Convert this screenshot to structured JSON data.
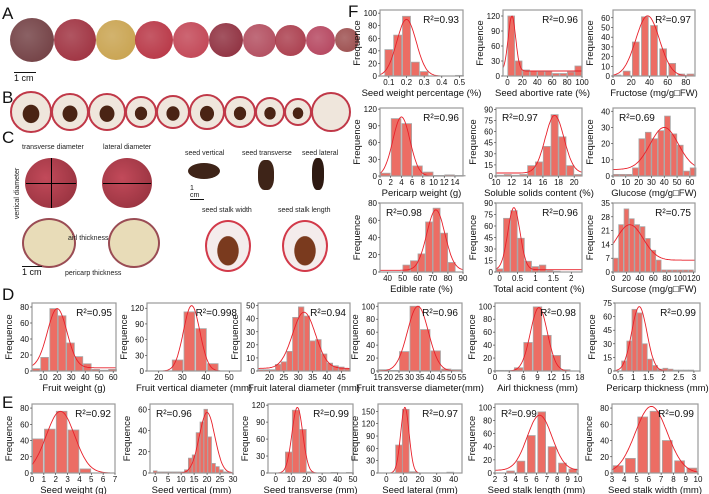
{
  "panels": {
    "A": "A",
    "B": "B",
    "C": "C",
    "D": "D",
    "E": "E",
    "F": "F"
  },
  "scale_bars": {
    "a": "1 cm",
    "c_seed": "1 cm",
    "c_fruit": "1 cm"
  },
  "panel_c_labels": {
    "transverse_diameter": "transverse diameter",
    "lateral_diameter": "lateral diameter",
    "vertical_diameter": "vertical diameter",
    "seed_vertical": "seed vertical",
    "seed_transverse": "seed transverse",
    "seed_lateral": "seed lateral",
    "seed_stalk_width": "seed stalk width",
    "seed_stalk_length": "seed stalk length",
    "airl_thickness": "airl thickness",
    "pericarp_thickness": "pericarp thickness"
  },
  "colors": {
    "bar": "#ec6d64",
    "bar_edge": "#a8a8a8",
    "curve": "#e8202a",
    "frame": "#9a9a9a"
  },
  "chart_data": [
    {
      "id": "F1",
      "type": "bar",
      "title": "",
      "xlabel": "Seed weight percentage (%)",
      "ylabel": "Frequence",
      "r2": "R²=0.93",
      "r2_pos": "top-right",
      "xlim": [
        0.05,
        0.52
      ],
      "ylim": [
        0,
        105
      ],
      "xticks": [
        0.1,
        0.2,
        0.3,
        0.4,
        0.5
      ],
      "yticks": [
        0,
        20,
        40,
        60,
        80,
        100
      ],
      "bar_width": 0.045,
      "x": [
        0.1,
        0.15,
        0.2,
        0.25,
        0.3,
        0.5
      ],
      "values": [
        42,
        65,
        95,
        22,
        7,
        1
      ],
      "fit": {
        "mean": 0.2,
        "sd": 0.055,
        "peak": 90
      }
    },
    {
      "id": "F2",
      "type": "bar",
      "xlabel": "Seed abortive rate (%)",
      "ylabel": "Frequence",
      "r2": "R²=0.96",
      "r2_pos": "top-right",
      "xlim": [
        -6,
        100
      ],
      "ylim": [
        0,
        132
      ],
      "xticks": [
        0,
        20,
        40,
        60,
        80,
        100
      ],
      "yticks": [
        0,
        30,
        60,
        90,
        120
      ],
      "bar_width": 9,
      "x": [
        5,
        15,
        25,
        35,
        45,
        55,
        65,
        75,
        85,
        95
      ],
      "values": [
        120,
        30,
        12,
        10,
        9,
        9,
        5,
        5,
        8,
        20
      ],
      "fit": {
        "mean": 6,
        "sd": 5,
        "peak": 120,
        "base": 10
      }
    },
    {
      "id": "F3",
      "type": "bar",
      "xlabel": "Fructose (mg/g□FW)",
      "ylabel": "Frequence",
      "r2": "R²=0.97",
      "r2_pos": "top-right",
      "xlim": [
        0,
        90
      ],
      "ylim": [
        0,
        68
      ],
      "xticks": [
        0,
        20,
        40,
        60,
        80
      ],
      "yticks": [
        0,
        10,
        20,
        30,
        40,
        50,
        60
      ],
      "bar_width": 7.5,
      "x": [
        5,
        15,
        25,
        35,
        45,
        55,
        65,
        75,
        85
      ],
      "values": [
        1,
        5,
        35,
        61,
        52,
        28,
        13,
        2,
        2
      ],
      "fit": {
        "mean": 38,
        "sd": 13,
        "peak": 62
      }
    },
    {
      "id": "F4",
      "type": "bar",
      "xlabel": "Pericarp weight (g)",
      "ylabel": "Frequence",
      "r2": "R²=0.96",
      "r2_pos": "top-right",
      "xlim": [
        0,
        15.5
      ],
      "ylim": [
        0,
        122
      ],
      "xticks": [
        0,
        2,
        4,
        6,
        8,
        10,
        12,
        14
      ],
      "yticks": [
        0,
        30,
        60,
        90,
        120
      ],
      "bar_width": 1.8,
      "x": [
        1,
        3,
        5,
        7,
        9,
        11,
        13,
        15
      ],
      "values": [
        5,
        103,
        94,
        18,
        7,
        1,
        2,
        1
      ],
      "fit": {
        "mean": 4,
        "sd": 1.6,
        "peak": 106
      }
    },
    {
      "id": "F5",
      "type": "bar",
      "xlabel": "Soluble solids content (%)",
      "ylabel": "Frequence",
      "r2": "R²=0.97",
      "r2_pos": "top-left",
      "xlim": [
        10,
        21
      ],
      "ylim": [
        0,
        92
      ],
      "xticks": [
        10,
        12,
        14,
        16,
        18,
        20
      ],
      "yticks": [
        0,
        15,
        30,
        45,
        60,
        75,
        90
      ],
      "bar_width": 0.9,
      "x": [
        10.5,
        11.5,
        12.5,
        13.5,
        14.5,
        15.5,
        16.5,
        17.5,
        18.5,
        19.5,
        20.5
      ],
      "values": [
        1,
        2,
        1,
        2,
        14,
        19,
        40,
        83,
        53,
        14,
        2
      ],
      "fit": {
        "mean": 17.5,
        "sd": 1.2,
        "peak": 82,
        "base": 4
      }
    },
    {
      "id": "F6",
      "type": "bar",
      "xlabel": "Glucose (mg/g□FW)",
      "ylabel": "Frequence",
      "r2": "R²=0.69",
      "r2_pos": "top-left",
      "xlim": [
        0,
        64
      ],
      "ylim": [
        0,
        42
      ],
      "xticks": [
        0,
        10,
        20,
        30,
        40,
        50,
        60
      ],
      "yticks": [
        0,
        10,
        20,
        30,
        40
      ],
      "bar_width": 4.5,
      "x": [
        2.5,
        7.5,
        12.5,
        17.5,
        22.5,
        27.5,
        32.5,
        37.5,
        42.5,
        47.5,
        52.5,
        57.5,
        62.5
      ],
      "values": [
        1,
        1,
        1,
        5,
        23,
        27,
        23,
        28,
        37,
        26,
        19,
        3,
        5
      ],
      "fit": {
        "mean": 40,
        "sd": 11,
        "peak": 30,
        "base": 4
      }
    },
    {
      "id": "F7",
      "type": "bar",
      "xlabel": "Edible rate (%)",
      "ylabel": "Frequence",
      "r2": "R²=0.98",
      "r2_pos": "top-left",
      "xlim": [
        35,
        90
      ],
      "ylim": [
        0,
        80
      ],
      "xticks": [
        40,
        50,
        60,
        70,
        80,
        90
      ],
      "yticks": [
        0,
        20,
        40,
        60,
        80
      ],
      "bar_width": 4.6,
      "x": [
        52.5,
        57.5,
        62.5,
        67.5,
        72.5,
        77.5,
        82.5
      ],
      "values": [
        8,
        13,
        21,
        58,
        74,
        45,
        11
      ],
      "fit": {
        "mean": 72,
        "sd": 6,
        "peak": 72,
        "base": 2
      }
    },
    {
      "id": "F8",
      "type": "bar",
      "xlabel": "Total acid content (%)",
      "ylabel": "Frequence",
      "r2": "R²=0.96",
      "r2_pos": "top-right",
      "xlim": [
        -0.1,
        2.3
      ],
      "ylim": [
        0,
        90
      ],
      "xticks": [
        0,
        0.5,
        1.0,
        1.5,
        2.0
      ],
      "yticks": [
        0,
        15,
        30,
        45,
        60,
        75,
        90
      ],
      "bar_width": 0.18,
      "x": [
        0,
        0.2,
        0.4,
        0.6,
        0.8,
        1.0,
        1.2,
        1.4,
        1.6
      ],
      "values": [
        4,
        70,
        80,
        44,
        14,
        7,
        9,
        2,
        1
      ],
      "fit": {
        "mean": 0.4,
        "sd": 0.17,
        "peak": 84,
        "base": 3
      }
    },
    {
      "id": "F9",
      "type": "bar",
      "xlabel": "Surcose (mg/g□FW)",
      "ylabel": "Frequence",
      "r2": "R²=0.75",
      "r2_pos": "top-right",
      "xlim": [
        0,
        122
      ],
      "ylim": [
        0,
        35
      ],
      "xticks": [
        0,
        20,
        40,
        60,
        80,
        100,
        120
      ],
      "yticks": [
        0,
        7,
        14,
        21,
        28,
        35
      ],
      "bar_width": 7,
      "x": [
        4,
        12,
        20,
        28,
        36,
        44,
        52,
        60,
        68,
        76,
        84,
        92,
        100,
        108,
        116
      ],
      "values": [
        7,
        24,
        32,
        27,
        24,
        23,
        17,
        11,
        6,
        1,
        1,
        1,
        1,
        1,
        1
      ],
      "fit": {
        "mean": 25,
        "sd": 20,
        "peak": 24,
        "base": 6
      }
    },
    {
      "id": "D1",
      "type": "bar",
      "xlabel": "Fruit weight (g)",
      "ylabel": "Frequence",
      "r2": "R²=0.95",
      "r2_pos": "top-right",
      "xlim": [
        2,
        62
      ],
      "ylim": [
        0,
        85
      ],
      "xticks": [
        10,
        20,
        30,
        40,
        50,
        60
      ],
      "yticks": [
        0,
        20,
        40,
        60,
        80
      ],
      "bar_width": 5.5,
      "x": [
        5,
        11,
        17.5,
        23.5,
        29.5,
        35.5,
        41.5,
        47.5,
        53.5,
        59.5
      ],
      "values": [
        3,
        17,
        78,
        69,
        35,
        18,
        9,
        2,
        1,
        2
      ],
      "fit": {
        "mean": 20,
        "sd": 7,
        "peak": 78,
        "base": 4
      }
    },
    {
      "id": "D2",
      "type": "bar",
      "xlabel": "Fruit vertical diameter (mm)",
      "ylabel": "Frequence",
      "r2": "R²=0.998",
      "r2_pos": "top-right",
      "xlim": [
        15,
        55
      ],
      "ylim": [
        0,
        130
      ],
      "xticks": [
        20,
        30,
        40,
        50
      ],
      "yticks": [
        0,
        30,
        60,
        90,
        120
      ],
      "bar_width": 4.5,
      "x": [
        28,
        33,
        38,
        43
      ],
      "values": [
        21,
        113,
        81,
        14
      ],
      "fit": {
        "mean": 34,
        "sd": 3.5,
        "peak": 125
      }
    },
    {
      "id": "D3",
      "type": "bar",
      "xlabel": "Fruit lateral diameter (mm)",
      "ylabel": "Frequence",
      "r2": "R²=0.94",
      "r2_pos": "top-right",
      "xlim": [
        16,
        48
      ],
      "ylim": [
        0,
        52
      ],
      "xticks": [
        20,
        25,
        30,
        35,
        40,
        45
      ],
      "yticks": [
        0,
        10,
        20,
        30,
        40,
        50
      ],
      "bar_width": 1.9,
      "x": [
        17,
        19,
        21,
        23,
        25,
        27,
        29,
        31,
        33,
        35,
        37,
        39,
        41,
        43,
        45,
        47
      ],
      "values": [
        1,
        1,
        1,
        5,
        7,
        15,
        41,
        49,
        42,
        23,
        24,
        13,
        6,
        4,
        3,
        2
      ],
      "fit": {
        "mean": 32,
        "sd": 4,
        "peak": 45,
        "base": 2
      }
    },
    {
      "id": "D4",
      "type": "bar",
      "xlabel": "Fruit transverse diameter(mm)",
      "ylabel": "Frequence",
      "r2": "R²=0.96",
      "r2_pos": "top-right",
      "xlim": [
        15,
        55
      ],
      "ylim": [
        0,
        105
      ],
      "xticks": [
        15,
        20,
        25,
        30,
        35,
        40,
        45,
        50,
        55
      ],
      "yticks": [
        0,
        20,
        40,
        60,
        80,
        100
      ],
      "bar_width": 4.5,
      "x": [
        17.5,
        22.5,
        27.5,
        32.5,
        37.5,
        42.5,
        47.5,
        52.5
      ],
      "values": [
        2,
        1,
        30,
        100,
        64,
        31,
        3,
        2
      ],
      "fit": {
        "mean": 34,
        "sd": 5,
        "peak": 100
      }
    },
    {
      "id": "D5",
      "type": "bar",
      "xlabel": "Airl thickness (mm)",
      "ylabel": "Frequence",
      "r2": "R²=0.98",
      "r2_pos": "top-right",
      "xlim": [
        0,
        18
      ],
      "ylim": [
        0,
        105
      ],
      "xticks": [
        0,
        3,
        6,
        9,
        12,
        15,
        18
      ],
      "yticks": [
        0,
        20,
        40,
        60,
        80,
        100
      ],
      "bar_width": 1.8,
      "x": [
        1,
        3,
        5,
        7,
        9,
        11,
        13,
        15
      ],
      "values": [
        1,
        1,
        5,
        44,
        99,
        55,
        24,
        2
      ],
      "fit": {
        "mean": 9.3,
        "sd": 1.8,
        "peak": 98
      }
    },
    {
      "id": "D6",
      "type": "bar",
      "xlabel": "Pericarp thickness (mm)",
      "ylabel": "Frequence",
      "r2": "R²=0.99",
      "r2_pos": "top-right",
      "xlim": [
        0.4,
        3.2
      ],
      "ylim": [
        0,
        75
      ],
      "xticks": [
        0.5,
        1.0,
        1.5,
        2.0,
        2.5,
        3.0
      ],
      "yticks": [
        0,
        15,
        30,
        45,
        60,
        75
      ],
      "bar_width": 0.16,
      "x": [
        0.7,
        0.87,
        1.04,
        1.21,
        1.38,
        1.55,
        1.72,
        1.89,
        2.06,
        2.23,
        2.4,
        2.57,
        2.74,
        2.91
      ],
      "values": [
        11,
        33,
        68,
        64,
        30,
        13,
        6,
        2,
        3,
        2,
        1,
        1,
        1,
        1
      ],
      "fit": {
        "mean": 1.2,
        "sd": 0.25,
        "peak": 71
      }
    },
    {
      "id": "E1",
      "type": "bar",
      "xlabel": "Seed weight (g)",
      "ylabel": "Frequence",
      "r2": "R²=0.92",
      "r2_pos": "top-right",
      "xlim": [
        0,
        7
      ],
      "ylim": [
        0,
        85
      ],
      "xticks": [
        0,
        1,
        2,
        3,
        4,
        5,
        6,
        7
      ],
      "yticks": [
        0,
        20,
        40,
        60,
        80
      ],
      "bar_width": 0.9,
      "x": [
        0.5,
        1.5,
        2.5,
        3.5,
        4.5
      ],
      "values": [
        42,
        54,
        76,
        53,
        5
      ],
      "fit": {
        "mean": 2.4,
        "sd": 1.2,
        "peak": 76
      }
    },
    {
      "id": "E2",
      "type": "bar",
      "xlabel": "Seed vertical (mm)",
      "ylabel": "Frequence",
      "r2": "R²=0.96",
      "r2_pos": "top-left",
      "xlim": [
        -2,
        30
      ],
      "ylim": [
        0,
        65
      ],
      "xticks": [
        0,
        5,
        10,
        15,
        20,
        25,
        30
      ],
      "yticks": [
        0,
        20,
        40,
        60
      ],
      "bar_width": 1.4,
      "x": [
        0,
        1.5,
        3,
        4.5,
        6,
        7.5,
        9,
        10.5,
        12,
        13.5,
        15,
        16.5,
        18,
        19.5,
        21,
        22.5,
        24,
        25.5,
        27,
        28.5
      ],
      "values": [
        2,
        1,
        1,
        1,
        1,
        1,
        1,
        1,
        3,
        14,
        17,
        38,
        48,
        60,
        34,
        9,
        6,
        3,
        1,
        1
      ],
      "fit": {
        "mean": 20,
        "sd": 3,
        "peak": 57
      }
    },
    {
      "id": "E3",
      "type": "bar",
      "xlabel": "Seed transverse (mm)",
      "ylabel": "Frequence",
      "r2": "R²=0.99",
      "r2_pos": "top-right",
      "xlim": [
        -5,
        50
      ],
      "ylim": [
        0,
        122
      ],
      "xticks": [
        0,
        10,
        20,
        30,
        40,
        50
      ],
      "yticks": [
        0,
        30,
        60,
        90,
        120
      ],
      "bar_width": 4.5,
      "x": [
        8.5,
        13,
        17.5,
        22,
        38,
        48
      ],
      "values": [
        37,
        111,
        77,
        2,
        1,
        1
      ],
      "fit": {
        "mean": 14,
        "sd": 3.5,
        "peak": 116
      }
    },
    {
      "id": "E4",
      "type": "bar",
      "xlabel": "Seed lateral (mm)",
      "ylabel": "Frequence",
      "r2": "R²=0.97",
      "r2_pos": "top-right",
      "xlim": [
        -5,
        45
      ],
      "ylim": [
        0,
        168
      ],
      "xticks": [
        0,
        10,
        20,
        30,
        40
      ],
      "yticks": [
        0,
        30,
        60,
        90,
        120,
        150
      ],
      "bar_width": 4,
      "x": [
        7.5,
        11.5,
        16,
        38
      ],
      "values": [
        68,
        155,
        3,
        2
      ],
      "fit": {
        "mean": 11,
        "sd": 2.5,
        "peak": 160
      }
    },
    {
      "id": "E5",
      "type": "bar",
      "xlabel": "Seed stalk length (mm)",
      "ylabel": "Frequence",
      "r2": "R²=0.99",
      "r2_pos": "top-left",
      "xlim": [
        2,
        10
      ],
      "ylim": [
        0,
        105
      ],
      "xticks": [
        2,
        3,
        4,
        5,
        6,
        7,
        8,
        9,
        10
      ],
      "yticks": [
        0,
        20,
        40,
        60,
        80,
        100
      ],
      "bar_width": 0.75,
      "x": [
        3.5,
        4.5,
        5.5,
        6.5,
        7.5,
        8.5,
        9.5
      ],
      "values": [
        3,
        18,
        57,
        93,
        40,
        15,
        6
      ],
      "fit": {
        "mean": 6.3,
        "sd": 1.2,
        "peak": 88,
        "base": 4
      }
    },
    {
      "id": "E6",
      "type": "bar",
      "xlabel": "Seed stalk width (mm)",
      "ylabel": "Frequence",
      "r2": "R²=0.99",
      "r2_pos": "top-right",
      "xlim": [
        3,
        10
      ],
      "ylim": [
        0,
        85
      ],
      "xticks": [
        3,
        4,
        5,
        6,
        7,
        8,
        9,
        10
      ],
      "yticks": [
        0,
        20,
        40,
        60,
        80
      ],
      "bar_width": 0.8,
      "x": [
        3.5,
        4.5,
        5.5,
        6.5,
        7.5,
        8.5,
        9.5
      ],
      "values": [
        9,
        18,
        69,
        76,
        40,
        15,
        6
      ],
      "fit": {
        "mean": 6.2,
        "sd": 1.3,
        "peak": 82
      }
    }
  ]
}
